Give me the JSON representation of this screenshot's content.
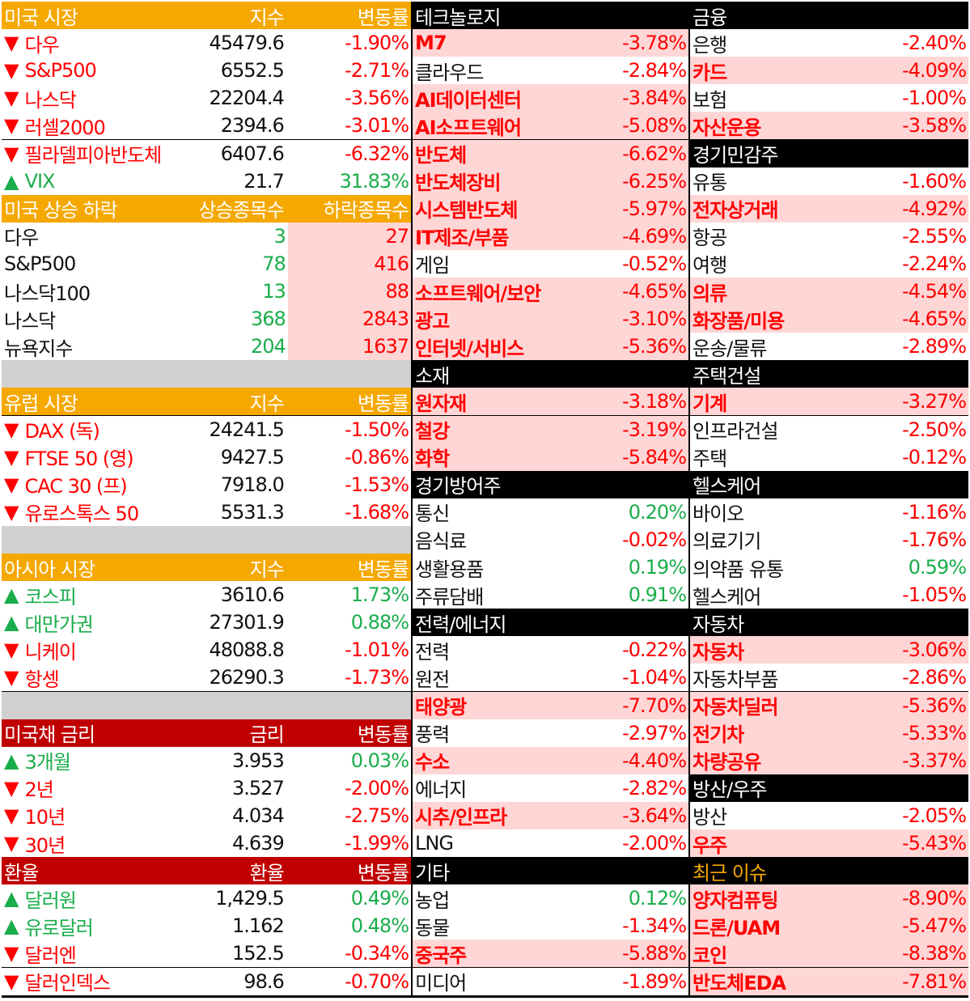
{
  "colors": {
    "header_orange": "#f5a800",
    "header_red": "#c00000",
    "header_black": "#000000",
    "down": "#ff0000",
    "up": "#1aad4b",
    "highlight": "#ffd6d6",
    "separator": "#d0d0d0"
  },
  "us_market": {
    "header": [
      "미국 시장",
      "지수",
      "변동률"
    ],
    "rows": [
      {
        "arrow": "▼",
        "name": "다우",
        "value": "45479.6",
        "change": "-1.90%",
        "dir": "down"
      },
      {
        "arrow": "▼",
        "name": "S&P500",
        "value": "6552.5",
        "change": "-2.71%",
        "dir": "down"
      },
      {
        "arrow": "▼",
        "name": "나스닥",
        "value": "22204.4",
        "change": "-3.56%",
        "dir": "down"
      },
      {
        "arrow": "▼",
        "name": "러셀2000",
        "value": "2394.6",
        "change": "-3.01%",
        "dir": "down"
      },
      {
        "arrow": "▼",
        "name": "필라델피아반도체",
        "value": "6407.6",
        "change": "-6.32%",
        "dir": "down"
      },
      {
        "arrow": "▲",
        "name": "VIX",
        "value": "21.7",
        "change": "31.83%",
        "dir": "up"
      }
    ]
  },
  "us_breadth": {
    "header": [
      "미국 상승 하락",
      "상승종목수",
      "하락종목수"
    ],
    "rows": [
      {
        "name": "다우",
        "up": "3",
        "down": "27"
      },
      {
        "name": "S&P500",
        "up": "78",
        "down": "416"
      },
      {
        "name": "나스닥100",
        "up": "13",
        "down": "88"
      },
      {
        "name": "나스닥",
        "up": "368",
        "down": "2843"
      },
      {
        "name": "뉴욕지수",
        "up": "204",
        "down": "1637"
      }
    ]
  },
  "europe": {
    "header": [
      "유럽 시장",
      "지수",
      "변동률"
    ],
    "rows": [
      {
        "arrow": "▼",
        "name": "DAX (독)",
        "value": "24241.5",
        "change": "-1.50%",
        "dir": "down"
      },
      {
        "arrow": "▼",
        "name": "FTSE 50 (영)",
        "value": "9427.5",
        "change": "-0.86%",
        "dir": "down"
      },
      {
        "arrow": "▼",
        "name": "CAC 30 (프)",
        "value": "7918.0",
        "change": "-1.53%",
        "dir": "down"
      },
      {
        "arrow": "▼",
        "name": "유로스톡스 50",
        "value": "5531.3",
        "change": "-1.68%",
        "dir": "down"
      }
    ]
  },
  "asia": {
    "header": [
      "아시아 시장",
      "지수",
      "변동률"
    ],
    "rows": [
      {
        "arrow": "▲",
        "name": "코스피",
        "value": "3610.6",
        "change": "1.73%",
        "dir": "up"
      },
      {
        "arrow": "▲",
        "name": "대만가권",
        "value": "27301.9",
        "change": "0.88%",
        "dir": "up"
      },
      {
        "arrow": "▼",
        "name": "니케이",
        "value": "48088.8",
        "change": "-1.01%",
        "dir": "down"
      },
      {
        "arrow": "▼",
        "name": "항셍",
        "value": "26290.3",
        "change": "-1.73%",
        "dir": "down"
      }
    ]
  },
  "bonds": {
    "header": [
      "미국채 금리",
      "금리",
      "변동률"
    ],
    "rows": [
      {
        "arrow": "▲",
        "name": "3개월",
        "value": "3.953",
        "change": "0.03%",
        "dir": "up"
      },
      {
        "arrow": "▼",
        "name": "2년",
        "value": "3.527",
        "change": "-2.00%",
        "dir": "down"
      },
      {
        "arrow": "▼",
        "name": "10년",
        "value": "4.034",
        "change": "-2.75%",
        "dir": "down"
      },
      {
        "arrow": "▼",
        "name": "30년",
        "value": "4.639",
        "change": "-1.99%",
        "dir": "down"
      }
    ]
  },
  "fx": {
    "header": [
      "환율",
      "환율",
      "변동률"
    ],
    "rows": [
      {
        "arrow": "▲",
        "name": "달러원",
        "value": "1,429.5",
        "change": "0.49%",
        "dir": "up"
      },
      {
        "arrow": "▲",
        "name": "유로달러",
        "value": "1.162",
        "change": "0.48%",
        "dir": "up"
      },
      {
        "arrow": "▼",
        "name": "달러엔",
        "value": "152.5",
        "change": "-0.34%",
        "dir": "down"
      },
      {
        "arrow": "▼",
        "name": "달러인덱스",
        "value": "98.6",
        "change": "-0.70%",
        "dir": "down"
      }
    ]
  },
  "sectors_mid": [
    {
      "title": "테크놀로지",
      "items": [
        {
          "name": "M7",
          "change": "-3.78%",
          "hl": true
        },
        {
          "name": "클라우드",
          "change": "-2.84%",
          "hl": false
        },
        {
          "name": "AI데이터센터",
          "change": "-3.84%",
          "hl": true
        },
        {
          "name": "AI소프트웨어",
          "change": "-5.08%",
          "hl": true
        },
        {
          "name": "반도체",
          "change": "-6.62%",
          "hl": true
        },
        {
          "name": "반도체장비",
          "change": "-6.25%",
          "hl": true
        },
        {
          "name": "시스템반도체",
          "change": "-5.97%",
          "hl": true
        },
        {
          "name": "IT제조/부품",
          "change": "-4.69%",
          "hl": true
        },
        {
          "name": "게임",
          "change": "-0.52%",
          "hl": false
        },
        {
          "name": "소프트웨어/보안",
          "change": "-4.65%",
          "hl": true
        },
        {
          "name": "광고",
          "change": "-3.10%",
          "hl": true
        },
        {
          "name": "인터넷/서비스",
          "change": "-5.36%",
          "hl": true
        }
      ]
    },
    {
      "title": "소재",
      "items": [
        {
          "name": "원자재",
          "change": "-3.18%",
          "hl": true
        },
        {
          "name": "철강",
          "change": "-3.19%",
          "hl": true
        },
        {
          "name": "화학",
          "change": "-5.84%",
          "hl": true
        }
      ]
    },
    {
      "title": "경기방어주",
      "items": [
        {
          "name": "통신",
          "change": "0.20%",
          "hl": false
        },
        {
          "name": "음식료",
          "change": "-0.02%",
          "hl": false
        },
        {
          "name": "생활용품",
          "change": "0.19%",
          "hl": false
        },
        {
          "name": "주류담배",
          "change": "0.91%",
          "hl": false
        }
      ]
    },
    {
      "title": "전력/에너지",
      "items": [
        {
          "name": "전력",
          "change": "-0.22%",
          "hl": false
        },
        {
          "name": "원전",
          "change": "-1.04%",
          "hl": false
        },
        {
          "name": "태양광",
          "change": "-7.70%",
          "hl": true
        },
        {
          "name": "풍력",
          "change": "-2.97%",
          "hl": false
        },
        {
          "name": "수소",
          "change": "-4.40%",
          "hl": true
        },
        {
          "name": "에너지",
          "change": "-2.82%",
          "hl": false
        },
        {
          "name": "시추/인프라",
          "change": "-3.64%",
          "hl": true
        },
        {
          "name": "LNG",
          "change": "-2.00%",
          "hl": false
        }
      ]
    },
    {
      "title": "기타",
      "items": [
        {
          "name": "농업",
          "change": "0.12%",
          "hl": false
        },
        {
          "name": "동물",
          "change": "-1.34%",
          "hl": false
        },
        {
          "name": "중국주",
          "change": "-5.88%",
          "hl": true
        },
        {
          "name": "미디어",
          "change": "-1.89%",
          "hl": false
        }
      ]
    }
  ],
  "sectors_right": [
    {
      "title": "금융",
      "gold": false,
      "items": [
        {
          "name": "은행",
          "change": "-2.40%",
          "hl": false
        },
        {
          "name": "카드",
          "change": "-4.09%",
          "hl": true
        },
        {
          "name": "보험",
          "change": "-1.00%",
          "hl": false
        },
        {
          "name": "자산운용",
          "change": "-3.58%",
          "hl": true
        }
      ]
    },
    {
      "title": "경기민감주",
      "gold": false,
      "items": [
        {
          "name": "유통",
          "change": "-1.60%",
          "hl": false
        },
        {
          "name": "전자상거래",
          "change": "-4.92%",
          "hl": true
        },
        {
          "name": "항공",
          "change": "-2.55%",
          "hl": false
        },
        {
          "name": "여행",
          "change": "-2.24%",
          "hl": false
        },
        {
          "name": "의류",
          "change": "-4.54%",
          "hl": true
        },
        {
          "name": "화장품/미용",
          "change": "-4.65%",
          "hl": true
        },
        {
          "name": "운송/물류",
          "change": "-2.89%",
          "hl": false
        }
      ]
    },
    {
      "title": "주택건설",
      "gold": false,
      "items": [
        {
          "name": "기계",
          "change": "-3.27%",
          "hl": true
        },
        {
          "name": "인프라건설",
          "change": "-2.50%",
          "hl": false
        },
        {
          "name": "주택",
          "change": "-0.12%",
          "hl": false
        }
      ]
    },
    {
      "title": "헬스케어",
      "gold": false,
      "items": [
        {
          "name": "바이오",
          "change": "-1.16%",
          "hl": false
        },
        {
          "name": "의료기기",
          "change": "-1.76%",
          "hl": false
        },
        {
          "name": "의약품 유통",
          "change": "0.59%",
          "hl": false
        },
        {
          "name": "헬스케어",
          "change": "-1.05%",
          "hl": false
        }
      ]
    },
    {
      "title": "자동차",
      "gold": false,
      "items": [
        {
          "name": "자동차",
          "change": "-3.06%",
          "hl": true
        },
        {
          "name": "자동차부품",
          "change": "-2.86%",
          "hl": false
        },
        {
          "name": "자동차딜러",
          "change": "-5.36%",
          "hl": true
        },
        {
          "name": "전기차",
          "change": "-5.33%",
          "hl": true
        },
        {
          "name": "차량공유",
          "change": "-3.37%",
          "hl": true
        }
      ]
    },
    {
      "title": "방산/우주",
      "gold": false,
      "items": [
        {
          "name": "방산",
          "change": "-2.05%",
          "hl": false
        },
        {
          "name": "우주",
          "change": "-5.43%",
          "hl": true
        }
      ]
    },
    {
      "title": "최근 이슈",
      "gold": true,
      "items": [
        {
          "name": "양자컴퓨팅",
          "change": "-8.90%",
          "hl": true
        },
        {
          "name": "드론/UAM",
          "change": "-5.47%",
          "hl": true
        },
        {
          "name": "코인",
          "change": "-8.38%",
          "hl": true
        },
        {
          "name": "반도체EDA",
          "change": "-7.81%",
          "hl": true
        }
      ]
    }
  ]
}
